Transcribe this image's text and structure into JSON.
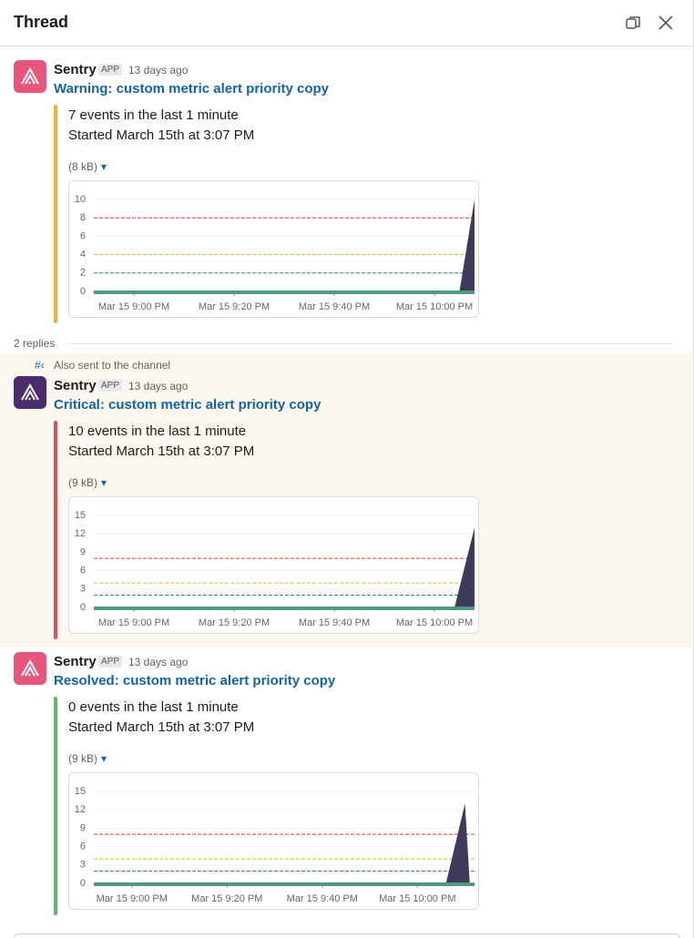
{
  "header": {
    "title": "Thread"
  },
  "replies": "2 replies",
  "also_sent": "Also sent to the channel",
  "messages": [
    {
      "author": "Sentry",
      "badge": "APP",
      "time": "13 days ago",
      "title": "Warning: custom metric alert priority copy",
      "lines": [
        "7 events in the last 1 minute",
        "Started March 15th at 3:07 PM"
      ],
      "attachment": "(8 kB)",
      "accent": "#ecb22e",
      "avatar_color": "#e8577b",
      "chart": {
        "type": "area",
        "color": "#3d3a5c",
        "x": [
          1252,
          1325,
          1328
        ],
        "values": [
          0,
          0,
          10
        ],
        "xlim": [
          1252,
          1328
        ],
        "ylim": [
          0,
          10
        ],
        "yticks": [
          0,
          2,
          4,
          6,
          8,
          10
        ],
        "xticks": [
          {
            "value": 1260,
            "label": "Mar 15 9:00 PM"
          },
          {
            "value": 1280,
            "label": "Mar 15 9:20 PM"
          },
          {
            "value": 1300,
            "label": "Mar 15 9:40 PM"
          },
          {
            "value": 1320,
            "label": "Mar 15 10:00 PM"
          }
        ],
        "thresholds": [
          {
            "value": 8,
            "color": "#e03e2f"
          },
          {
            "value": 4,
            "color": "#ecb22e"
          },
          {
            "value": 2,
            "color": "#2d8a8a"
          }
        ]
      }
    },
    {
      "author": "Sentry",
      "badge": "APP",
      "time": "13 days ago",
      "title": "Critical: custom metric alert priority copy",
      "lines": [
        "10 events in the last 1 minute",
        "Started March 15th at 3:07 PM"
      ],
      "attachment": "(9 kB)",
      "accent": "#e0505a",
      "avatar_color": "#4a2b6b",
      "chart": {
        "type": "area",
        "color": "#3d3a5c",
        "x": [
          1252,
          1324,
          1328
        ],
        "values": [
          0,
          0,
          13
        ],
        "xlim": [
          1252,
          1328
        ],
        "ylim": [
          0,
          15
        ],
        "yticks": [
          0,
          3,
          6,
          9,
          12,
          15
        ],
        "xticks": [
          {
            "value": 1260,
            "label": "Mar 15 9:00 PM"
          },
          {
            "value": 1280,
            "label": "Mar 15 9:20 PM"
          },
          {
            "value": 1300,
            "label": "Mar 15 9:40 PM"
          },
          {
            "value": 1320,
            "label": "Mar 15 10:00 PM"
          }
        ],
        "thresholds": [
          {
            "value": 8,
            "color": "#e03e2f"
          },
          {
            "value": 4,
            "color": "#ecb22e"
          },
          {
            "value": 2,
            "color": "#2d8a8a"
          }
        ]
      }
    },
    {
      "author": "Sentry",
      "badge": "APP",
      "time": "13 days ago",
      "title": "Resolved: custom metric alert priority copy",
      "lines": [
        "0 events in the last 1 minute",
        "Started March 15th at 3:07 PM"
      ],
      "attachment": "(9 kB)",
      "accent": "#5bb974",
      "avatar_color": "#e8577b",
      "chart": {
        "type": "area",
        "color": "#3d3a5c",
        "x": [
          1252,
          1326,
          1330,
          1331,
          1332
        ],
        "values": [
          0,
          0,
          13,
          0,
          0
        ],
        "xlim": [
          1252,
          1332
        ],
        "ylim": [
          0,
          15
        ],
        "yticks": [
          0,
          3,
          6,
          9,
          12,
          15
        ],
        "xticks": [
          {
            "value": 1260,
            "label": "Mar 15 9:00 PM"
          },
          {
            "value": 1280,
            "label": "Mar 15 9:20 PM"
          },
          {
            "value": 1300,
            "label": "Mar 15 9:40 PM"
          },
          {
            "value": 1320,
            "label": "Mar 15 10:00 PM"
          }
        ],
        "thresholds": [
          {
            "value": 8,
            "color": "#e03e2f"
          },
          {
            "value": 4,
            "color": "#ecb22e"
          },
          {
            "value": 2,
            "color": "#2d8a8a"
          }
        ]
      }
    }
  ]
}
